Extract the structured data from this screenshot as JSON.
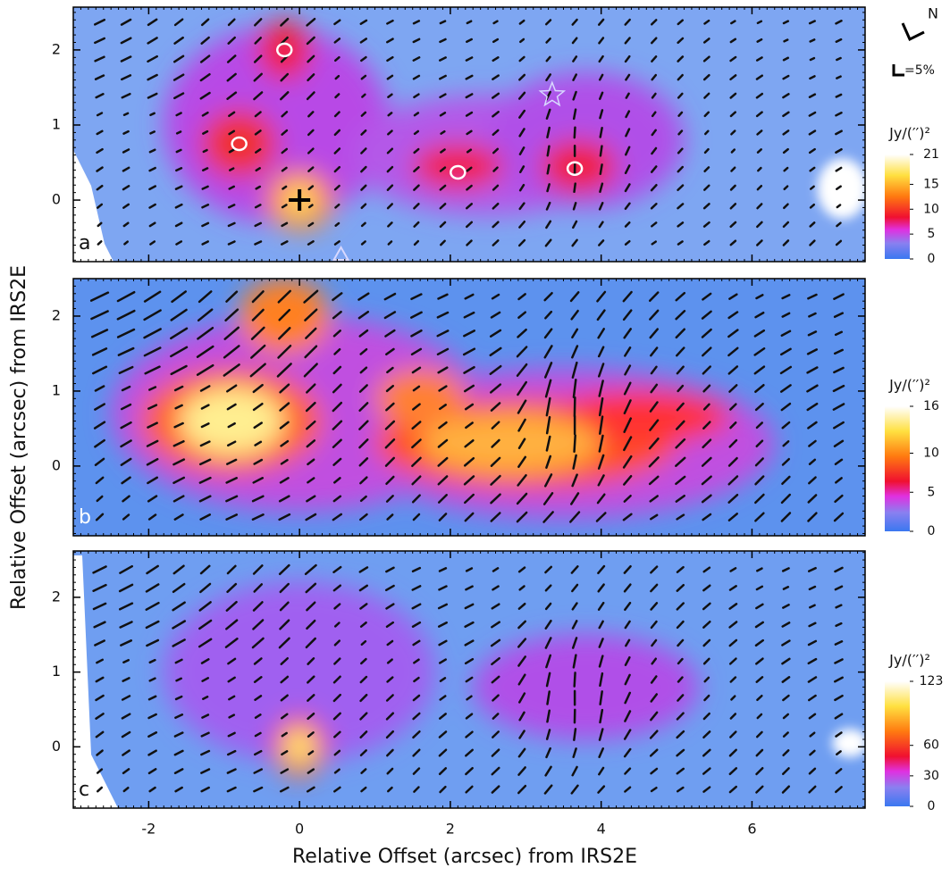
{
  "chart_data": {
    "type": "heatmap",
    "x_label": "Relative Offset (arcsec) from IRS2E",
    "y_label": "Relative Offset (arcsec) from IRS2E",
    "xlim": [
      -3,
      7.5
    ],
    "xticks": [
      -2,
      0,
      2,
      4,
      6
    ],
    "compass": "N",
    "scale_label": "=5%",
    "panels": [
      {
        "panel_label": "a",
        "ylim": [
          -0.82,
          2.57
        ],
        "yticks": [
          2,
          1,
          0
        ],
        "colorbar": {
          "label": "Jy/(′′)²",
          "lim": [
            0,
            21
          ],
          "ticks": [
            21,
            15,
            10,
            5,
            0
          ]
        }
      },
      {
        "panel_label": "b",
        "ylim": [
          -0.93,
          2.5
        ],
        "yticks": [
          2,
          1,
          0
        ],
        "colorbar": {
          "label": "Jy/(′′)²",
          "lim": [
            0,
            16
          ],
          "ticks": [
            16,
            10,
            5,
            0
          ]
        }
      },
      {
        "panel_label": "c",
        "ylim": [
          -0.82,
          2.62
        ],
        "yticks": [
          2,
          1,
          0
        ],
        "colorbar": {
          "label": "Jy/(′′)²",
          "lim": [
            0,
            123
          ],
          "ticks": [
            123,
            60,
            30,
            0
          ]
        }
      }
    ]
  }
}
